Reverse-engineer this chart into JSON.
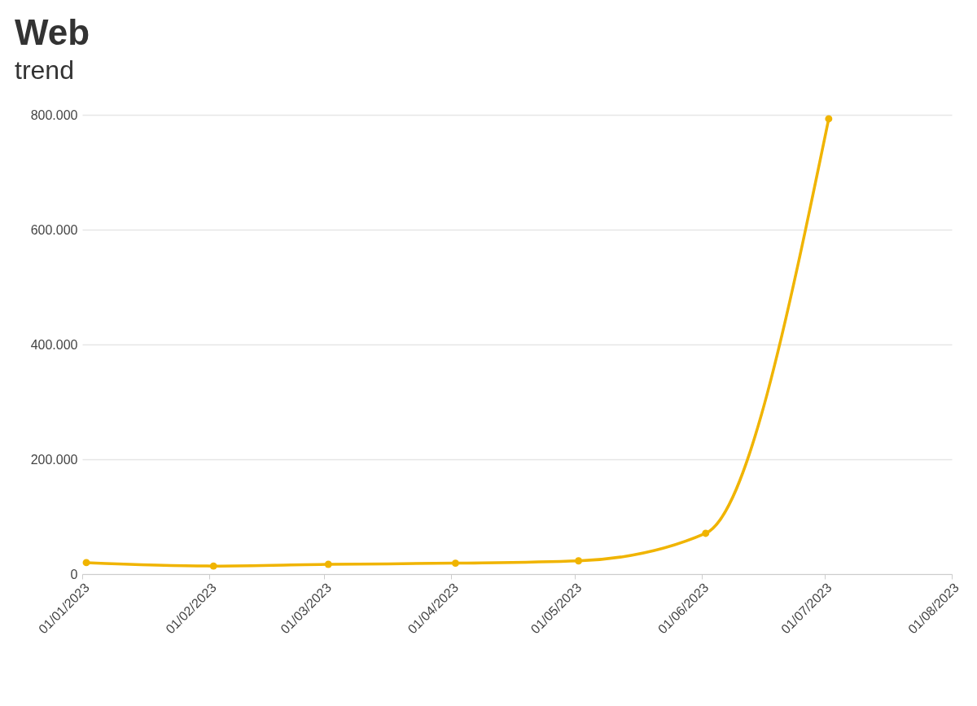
{
  "chart_data": {
    "type": "line",
    "title": "Web",
    "subtitle": "trend",
    "x": [
      "2023-01-02",
      "2023-02-02",
      "2023-03-02",
      "2023-04-02",
      "2023-05-02",
      "2023-06-02",
      "2023-07-02"
    ],
    "series": [
      {
        "color": "#f0b400",
        "values": [
          20000,
          14000,
          17000,
          19000,
          23000,
          71000,
          793000
        ]
      }
    ],
    "xlim": [
      "2023-01-01",
      "2023-08-01"
    ],
    "xticks": [
      {
        "value": "2023-01-01",
        "label": "01/01/2023"
      },
      {
        "value": "2023-02-01",
        "label": "01/02/2023"
      },
      {
        "value": "2023-03-01",
        "label": "01/03/2023"
      },
      {
        "value": "2023-04-01",
        "label": "01/04/2023"
      },
      {
        "value": "2023-05-01",
        "label": "01/05/2023"
      },
      {
        "value": "2023-06-01",
        "label": "01/06/2023"
      },
      {
        "value": "2023-07-01",
        "label": "01/07/2023"
      },
      {
        "value": "2023-08-01",
        "label": "01/08/2023"
      }
    ],
    "ylim": [
      0,
      800000
    ],
    "yticks": [
      0,
      {
        "value": 200000,
        "label": "200.000"
      },
      {
        "value": 400000,
        "label": "400.000"
      },
      {
        "value": 600000,
        "label": "600.000"
      },
      {
        "value": 800000,
        "label": "800.000"
      }
    ],
    "grid": "y",
    "marker": "circle",
    "line_style": "solid"
  }
}
